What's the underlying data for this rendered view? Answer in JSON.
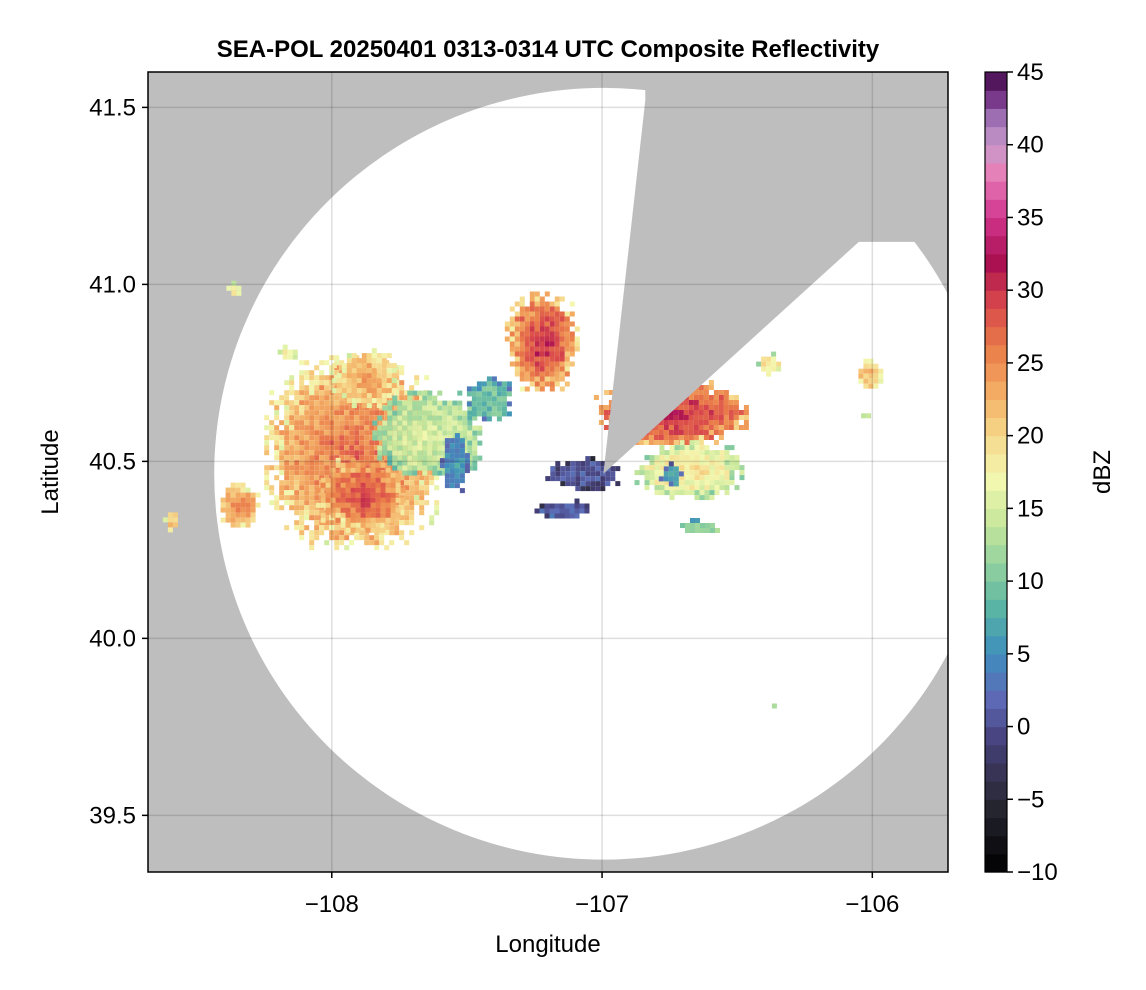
{
  "chart_data": {
    "type": "heatmap",
    "title": "SEA-POL 20250401 0313-0314 UTC Composite Reflectivity",
    "xlabel": "Longitude",
    "ylabel": "Latitude",
    "xlim": [
      -108.68,
      -105.72
    ],
    "ylim": [
      39.34,
      41.6
    ],
    "xticks": [
      -108,
      -107,
      -106
    ],
    "xtick_labels": [
      "−108",
      "−107",
      "−106"
    ],
    "yticks": [
      39.5,
      40.0,
      40.5,
      41.0,
      41.5
    ],
    "ytick_labels": [
      "39.5",
      "40.0",
      "40.5",
      "41.0",
      "41.5"
    ],
    "grid": true,
    "missing_color": "#bebebe",
    "radar_coverage": {
      "center": [
        -106.995,
        40.465
      ],
      "radius_lon_deg": 1.44,
      "radius_lat_deg": 1.09,
      "blocked_sectors": [
        {
          "from_lon_lat": [
            -106.84,
            41.52
          ],
          "to_lon_lat": [
            -106.05,
            41.12
          ]
        }
      ]
    },
    "reflectivity_cells": [
      {
        "name": "western-complex",
        "lon": -107.93,
        "lat": 40.53,
        "rx_deg": 0.32,
        "ry_deg": 0.27,
        "core_dbz": 27,
        "mean_dbz": 20
      },
      {
        "name": "western-complex-south",
        "lon": -107.9,
        "lat": 40.41,
        "rx_deg": 0.16,
        "ry_deg": 0.1,
        "core_dbz": 29,
        "mean_dbz": 22
      },
      {
        "name": "western-light-shelf",
        "lon": -107.65,
        "lat": 40.58,
        "rx_deg": 0.2,
        "ry_deg": 0.12,
        "core_dbz": 15,
        "mean_dbz": 13
      },
      {
        "name": "western-north-lobe",
        "lon": -107.88,
        "lat": 40.74,
        "rx_deg": 0.12,
        "ry_deg": 0.08,
        "core_dbz": 24,
        "mean_dbz": 19
      },
      {
        "name": "western-east-edge",
        "lon": -107.55,
        "lat": 40.5,
        "rx_deg": 0.05,
        "ry_deg": 0.08,
        "core_dbz": 6,
        "mean_dbz": 4
      },
      {
        "name": "southwest-cell",
        "lon": -108.35,
        "lat": 40.38,
        "rx_deg": 0.08,
        "ry_deg": 0.06,
        "core_dbz": 26,
        "mean_dbz": 21
      },
      {
        "name": "far-west-cell",
        "lon": -108.6,
        "lat": 40.34,
        "rx_deg": 0.025,
        "ry_deg": 0.03,
        "core_dbz": 22,
        "mean_dbz": 20
      },
      {
        "name": "northwest-speck",
        "lon": -108.36,
        "lat": 40.99,
        "rx_deg": 0.03,
        "ry_deg": 0.02,
        "core_dbz": 18,
        "mean_dbz": 17
      },
      {
        "name": "northwest-speck-2",
        "lon": -108.17,
        "lat": 40.81,
        "rx_deg": 0.03,
        "ry_deg": 0.02,
        "core_dbz": 18,
        "mean_dbz": 17
      },
      {
        "name": "central-north-cell",
        "lon": -107.23,
        "lat": 40.84,
        "rx_deg": 0.13,
        "ry_deg": 0.14,
        "core_dbz": 31,
        "mean_dbz": 22
      },
      {
        "name": "central-link",
        "lon": -107.42,
        "lat": 40.68,
        "rx_deg": 0.08,
        "ry_deg": 0.06,
        "core_dbz": 10,
        "mean_dbz": 8
      },
      {
        "name": "near-radar-weak-echo",
        "lon": -107.08,
        "lat": 40.47,
        "rx_deg": 0.13,
        "ry_deg": 0.045,
        "core_dbz": 1,
        "mean_dbz": 0
      },
      {
        "name": "near-radar-south-specks",
        "lon": -107.15,
        "lat": 40.37,
        "rx_deg": 0.1,
        "ry_deg": 0.025,
        "core_dbz": 2,
        "mean_dbz": 1
      },
      {
        "name": "eastern-band",
        "lon": -106.75,
        "lat": 40.64,
        "rx_deg": 0.28,
        "ry_deg": 0.09,
        "core_dbz": 31,
        "mean_dbz": 24
      },
      {
        "name": "eastern-south-lobe",
        "lon": -106.68,
        "lat": 40.48,
        "rx_deg": 0.2,
        "ry_deg": 0.08,
        "core_dbz": 19,
        "mean_dbz": 15
      },
      {
        "name": "eastern-weak-core",
        "lon": -106.75,
        "lat": 40.47,
        "rx_deg": 0.04,
        "ry_deg": 0.03,
        "core_dbz": 6,
        "mean_dbz": 5
      },
      {
        "name": "eastern-south-specks",
        "lon": -106.65,
        "lat": 40.32,
        "rx_deg": 0.08,
        "ry_deg": 0.02,
        "core_dbz": 12,
        "mean_dbz": 11
      },
      {
        "name": "east-detached-cell",
        "lon": -106.39,
        "lat": 40.78,
        "rx_deg": 0.04,
        "ry_deg": 0.03,
        "core_dbz": 20,
        "mean_dbz": 17
      },
      {
        "name": "far-east-cell",
        "lon": -106.02,
        "lat": 40.75,
        "rx_deg": 0.05,
        "ry_deg": 0.04,
        "core_dbz": 22,
        "mean_dbz": 19
      },
      {
        "name": "far-east-speck",
        "lon": -106.04,
        "lat": 40.64,
        "rx_deg": 0.02,
        "ry_deg": 0.01,
        "core_dbz": 15,
        "mean_dbz": 14
      },
      {
        "name": "southeast-speck",
        "lon": -106.38,
        "lat": 39.82,
        "rx_deg": 0.01,
        "ry_deg": 0.01,
        "core_dbz": 15,
        "mean_dbz": 15
      }
    ],
    "colorbar": {
      "label": "dBZ",
      "range": [
        -10,
        45
      ],
      "step": 1.25,
      "ticks": [
        -10,
        -5,
        0,
        5,
        10,
        15,
        20,
        25,
        30,
        35,
        40,
        45
      ],
      "tick_labels": [
        "−10",
        "−5",
        "0",
        "5",
        "10",
        "15",
        "20",
        "25",
        "30",
        "35",
        "40",
        "45"
      ],
      "colormap": [
        {
          "v": -10,
          "c": "#000000"
        },
        {
          "v": -5,
          "c": "#2a2a36"
        },
        {
          "v": -1,
          "c": "#45407a"
        },
        {
          "v": 2,
          "c": "#5e6bb6"
        },
        {
          "v": 5,
          "c": "#3f8ebd"
        },
        {
          "v": 8,
          "c": "#58b3a5"
        },
        {
          "v": 11,
          "c": "#8fd09f"
        },
        {
          "v": 14,
          "c": "#c6e79b"
        },
        {
          "v": 17,
          "c": "#f3f8b0"
        },
        {
          "v": 20,
          "c": "#f6d98c"
        },
        {
          "v": 23,
          "c": "#f3ac63"
        },
        {
          "v": 26,
          "c": "#ea7d4a"
        },
        {
          "v": 29,
          "c": "#d9484b"
        },
        {
          "v": 32,
          "c": "#a90e50"
        },
        {
          "v": 35,
          "c": "#d0358d"
        },
        {
          "v": 38,
          "c": "#e67fb8"
        },
        {
          "v": 40,
          "c": "#c89acb"
        },
        {
          "v": 42,
          "c": "#9a6bb0"
        },
        {
          "v": 43.5,
          "c": "#6e2a7e"
        },
        {
          "v": 45,
          "c": "#3f0a45"
        }
      ]
    }
  }
}
